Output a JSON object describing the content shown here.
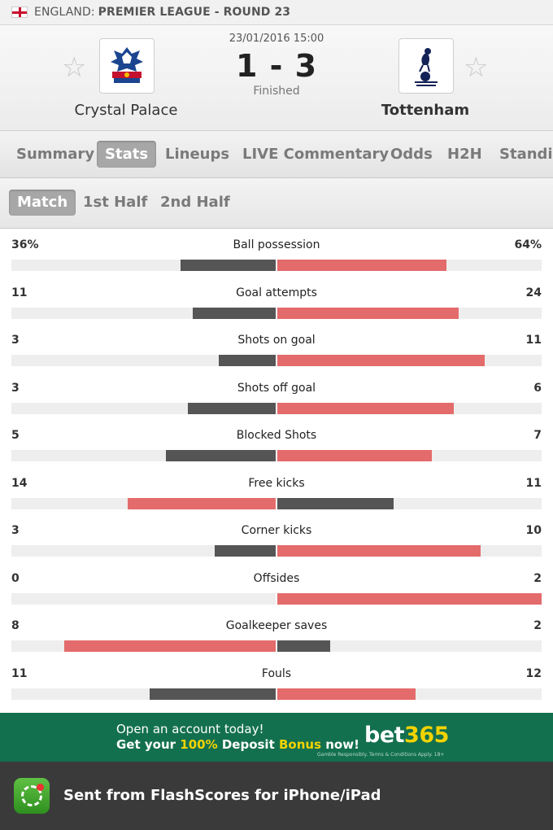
{
  "league": {
    "country": "ENGLAND:",
    "name": "PREMIER LEAGUE - ROUND 23"
  },
  "match": {
    "datetime": "23/01/2016 15:00",
    "score": "1 - 3",
    "status": "Finished",
    "home_team": "Crystal Palace",
    "away_team": "Tottenham"
  },
  "tabs": [
    "Summary",
    "Stats",
    "Lineups",
    "LIVE Commentary",
    "Odds",
    "H2H",
    "Standi"
  ],
  "active_tab": "Stats",
  "subtabs": [
    "Match",
    "1st Half",
    "2nd Half"
  ],
  "active_subtab": "Match",
  "stats": [
    {
      "label": "Ball possession",
      "home": "36%",
      "away": "64%",
      "home_value": 36,
      "away_value": 64
    },
    {
      "label": "Goal attempts",
      "home": "11",
      "away": "24",
      "home_value": 11,
      "away_value": 24
    },
    {
      "label": "Shots on goal",
      "home": "3",
      "away": "11",
      "home_value": 3,
      "away_value": 11
    },
    {
      "label": "Shots off goal",
      "home": "3",
      "away": "6",
      "home_value": 3,
      "away_value": 6
    },
    {
      "label": "Blocked Shots",
      "home": "5",
      "away": "7",
      "home_value": 5,
      "away_value": 7
    },
    {
      "label": "Free kicks",
      "home": "14",
      "away": "11",
      "home_value": 14,
      "away_value": 11
    },
    {
      "label": "Corner kicks",
      "home": "3",
      "away": "10",
      "home_value": 3,
      "away_value": 10
    },
    {
      "label": "Offsides",
      "home": "0",
      "away": "2",
      "home_value": 0,
      "away_value": 2
    },
    {
      "label": "Goalkeeper saves",
      "home": "8",
      "away": "2",
      "home_value": 8,
      "away_value": 2
    },
    {
      "label": "Fouls",
      "home": "11",
      "away": "12",
      "home_value": 11,
      "away_value": 12
    }
  ],
  "ad": {
    "line1": "Open an account today!",
    "line2_a": "Get your ",
    "line2_b": "100%",
    "line2_c": " Deposit ",
    "line2_d": "Bonus",
    "line2_e": " now!",
    "brand_a": "bet",
    "brand_b": "365",
    "small": "Gamble Responsibly. Terms & Conditions Apply. 18+"
  },
  "footer": {
    "text": "Sent from FlashScores for iPhone/iPad"
  },
  "colors": {
    "win_bar": "#e46b6b",
    "lose_bar": "#555555",
    "ad_bg": "#13704f",
    "accent_yellow": "#f2d300"
  },
  "icons": {
    "flag": "england-flag-icon",
    "favorite": "star-outline-icon",
    "app": "flashscores-app-icon"
  }
}
